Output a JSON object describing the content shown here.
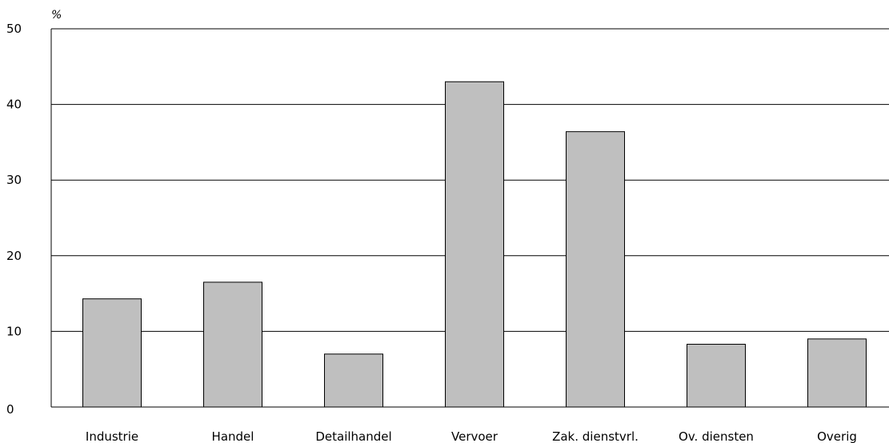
{
  "chart_data": {
    "type": "bar",
    "title": "",
    "xlabel": "",
    "ylabel": "%",
    "ylim": [
      0,
      50
    ],
    "yticks": [
      "0",
      "10",
      "20",
      "30",
      "40",
      "50"
    ],
    "grid": true,
    "categories": [
      "Industrie",
      "Handel",
      "Detailhandel",
      "Vervoer",
      "Zak. dienstvrl.",
      "Ov. diensten",
      "Overig"
    ],
    "values": [
      14.3,
      16.5,
      7.0,
      43.0,
      36.4,
      8.3,
      9.0
    ],
    "colors": {
      "bar_fill": "#bfbfbf",
      "bar_stroke": "#000000",
      "grid": "#000000"
    }
  }
}
